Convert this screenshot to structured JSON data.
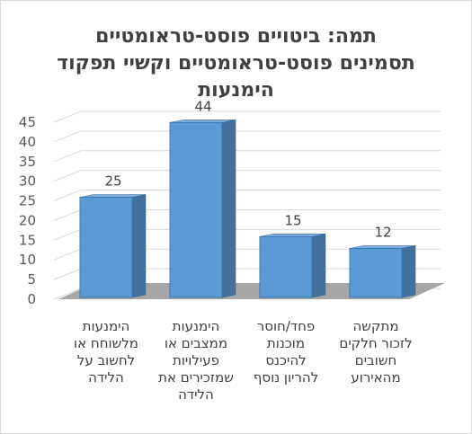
{
  "chart_data": {
    "type": "bar",
    "title_lines": [
      "תמה: ביטויים פוסט-טראומטיים",
      "תסמינים פוסט-טראומטיים וקשיי תפקוד",
      "הימנעות"
    ],
    "categories": [
      [
        "הימנעות",
        "מלשוחח או",
        "לחשוב על",
        "הלידה"
      ],
      [
        "הימנעות",
        "ממצבים או",
        "פעילויות",
        "שמזכירים את",
        "הלידה"
      ],
      [
        "פחד/חוסר",
        "מוכנות",
        "להיכנס",
        "להריון נוסף"
      ],
      [
        "מתקשה",
        "לזכור חלקים",
        "חשובים",
        "מהאירוע"
      ]
    ],
    "values": [
      25,
      44,
      15,
      12
    ],
    "data_labels": [
      "25",
      "44",
      "15",
      "12"
    ],
    "y_ticks": [
      "0",
      "5",
      "10",
      "15",
      "20",
      "25",
      "30",
      "35",
      "40",
      "45"
    ],
    "ylim": [
      0,
      45
    ],
    "grid": true,
    "colors": {
      "bar_front": "#5b9bd5",
      "bar_side": "#41719c",
      "bar_top": "#7fb0e0",
      "floor": "#a6a6a6",
      "grid": "#d9d9d9"
    }
  }
}
